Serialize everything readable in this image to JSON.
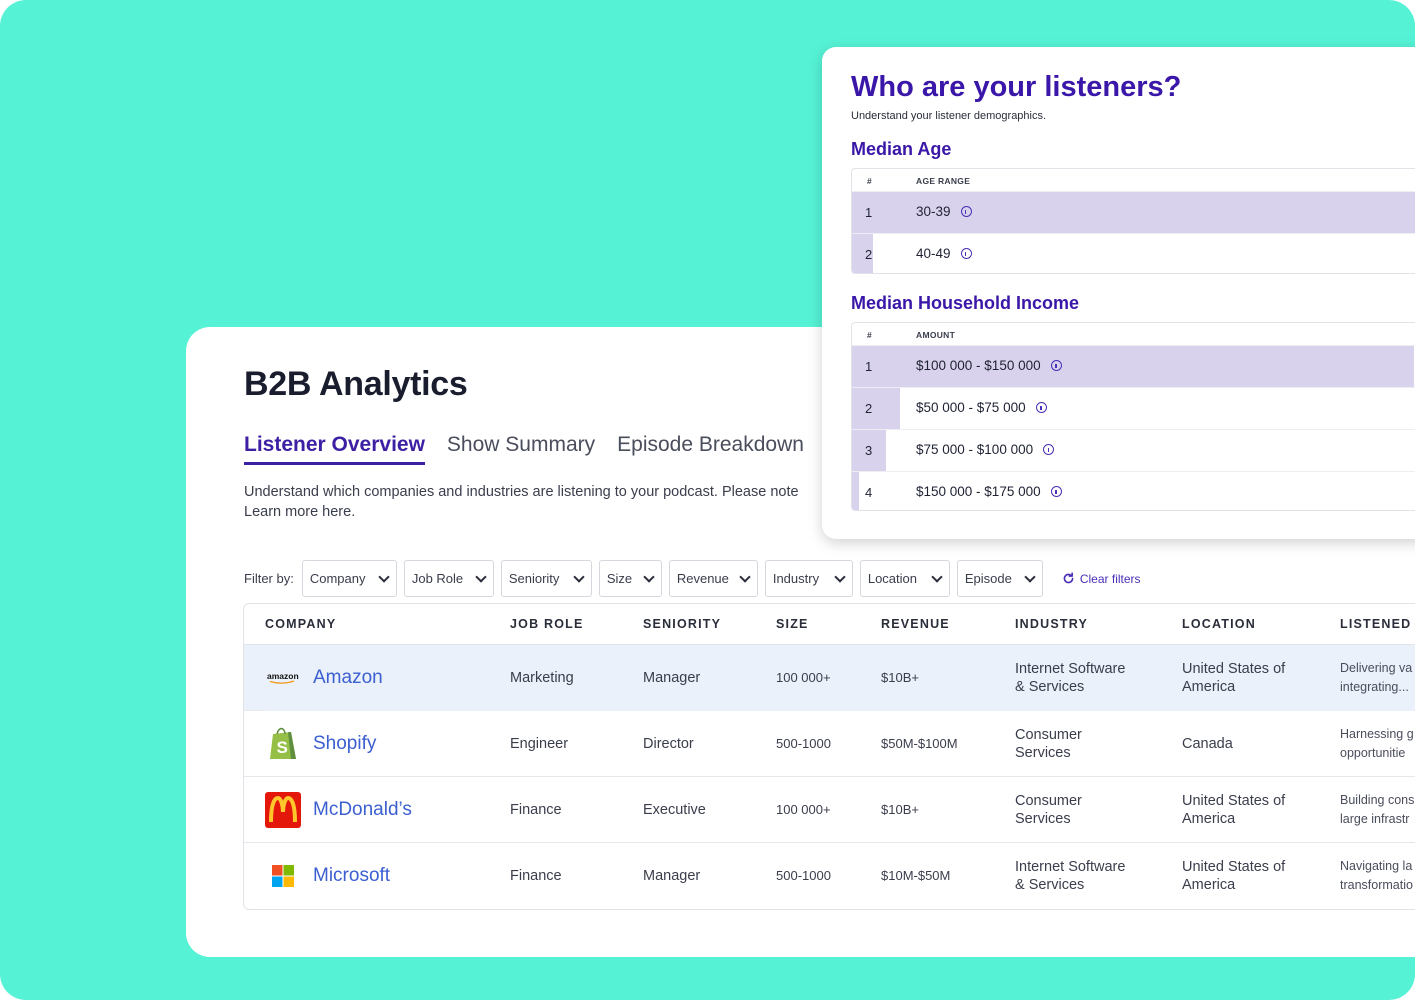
{
  "main": {
    "title": "B2B Analytics",
    "tabs": [
      {
        "label": "Listener Overview",
        "active": true
      },
      {
        "label": "Show Summary",
        "active": false
      },
      {
        "label": "Episode Breakdown",
        "active": false
      }
    ],
    "description_line1": "Understand which companies and industries are listening to your podcast. Please note",
    "description_line2": "Learn more here.",
    "filter_label": "Filter by:",
    "filters": [
      "Company",
      "Job Role",
      "Seniority",
      "Size",
      "Revenue",
      "Industry",
      "Location",
      "Episode"
    ],
    "clear_filters": "Clear filters",
    "columns": [
      "COMPANY",
      "JOB ROLE",
      "SENIORITY",
      "SIZE",
      "REVENUE",
      "INDUSTRY",
      "LOCATION",
      "LISTENED T"
    ],
    "rows": [
      {
        "company": "Amazon",
        "logo": "amazon-logo",
        "job_role": "Marketing",
        "seniority": "Manager",
        "size": "100 000+",
        "revenue": "$10B+",
        "industry_1": "Internet Software",
        "industry_2": "& Services",
        "location_1": "United States of",
        "location_2": "America",
        "listened_1": "Delivering va",
        "listened_2": "integrating..."
      },
      {
        "company": "Shopify",
        "logo": "shopify-logo",
        "job_role": "Engineer",
        "seniority": "Director",
        "size": "500-1000",
        "revenue": "$50M-$100M",
        "industry_1": "Consumer",
        "industry_2": "Services",
        "location_1": "Canada",
        "location_2": "",
        "listened_1": "Harnessing g",
        "listened_2": "opportunitie"
      },
      {
        "company": "McDonald’s",
        "logo": "mcdonalds-logo",
        "job_role": "Finance",
        "seniority": "Executive",
        "size": "100 000+",
        "revenue": "$10B+",
        "industry_1": "Consumer",
        "industry_2": "Services",
        "location_1": "United States of",
        "location_2": "America",
        "listened_1": "Building cons",
        "listened_2": "large infrastr"
      },
      {
        "company": "Microsoft",
        "logo": "microsoft-logo",
        "job_role": "Finance",
        "seniority": "Manager",
        "size": "500-1000",
        "revenue": "$10M-$50M",
        "industry_1": "Internet Software",
        "industry_2": "& Services",
        "location_1": "United States of",
        "location_2": "America",
        "listened_1": "Navigating la",
        "listened_2": "transformatio"
      }
    ]
  },
  "panel": {
    "title": "Who are your listeners?",
    "subtitle": "Understand your listener demographics.",
    "age": {
      "heading": "Median Age",
      "col_num": "#",
      "col_label": "AGE RANGE",
      "rows": [
        {
          "rank": "1",
          "value": "30-39",
          "share": 1.0
        },
        {
          "rank": "2",
          "value": "40-49",
          "share": 0.035
        }
      ]
    },
    "income": {
      "heading": "Median Household Income",
      "col_num": "#",
      "col_label": "AMOUNT",
      "rows": [
        {
          "rank": "1",
          "value": "$100 000 - $150 000",
          "share": 1.0
        },
        {
          "rank": "2",
          "value": "$50 000 - $75 000",
          "share": 0.085
        },
        {
          "rank": "3",
          "value": "$75 000 - $100 000",
          "share": 0.06
        },
        {
          "rank": "4",
          "value": "$150 000 - $175 000",
          "share": 0.012
        }
      ]
    }
  },
  "colors": {
    "background": "#55f2d5",
    "accent": "#3a17a8",
    "link": "#3b5fd0",
    "bar": "#d9d2ec",
    "row_highlight": "#eaf1fb"
  }
}
